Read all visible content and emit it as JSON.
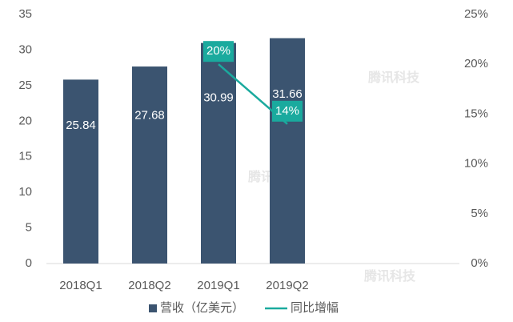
{
  "chart_data": {
    "type": "bar_line",
    "categories": [
      "2018Q1",
      "2018Q2",
      "2019Q1",
      "2019Q2",
      null,
      null
    ],
    "series": [
      {
        "name": "营收（亿美元）",
        "type": "bar",
        "color": "#3b5470",
        "values": [
          25.84,
          27.68,
          30.99,
          31.66,
          null,
          null
        ]
      },
      {
        "name": "同比增幅",
        "type": "line",
        "axis": "y2",
        "color": "#1aaa9e",
        "values": [
          null,
          null,
          20,
          14,
          null,
          null
        ],
        "value_labels": [
          null,
          null,
          "20%",
          "14%",
          null,
          null
        ]
      }
    ],
    "ylim": [
      0,
      35
    ],
    "yticks": [
      0,
      5,
      10,
      15,
      20,
      25,
      30,
      35
    ],
    "y2lim": [
      0,
      25
    ],
    "y2ticks": [
      {
        "value": 0,
        "label": "0%"
      },
      {
        "value": 5,
        "label": "5%"
      },
      {
        "value": 10,
        "label": "10%"
      },
      {
        "value": 15,
        "label": "15%"
      },
      {
        "value": 20,
        "label": "20%"
      },
      {
        "value": 25,
        "label": "25%"
      }
    ],
    "grid": false,
    "legend": "bottom",
    "watermark": "腾讯科技"
  }
}
